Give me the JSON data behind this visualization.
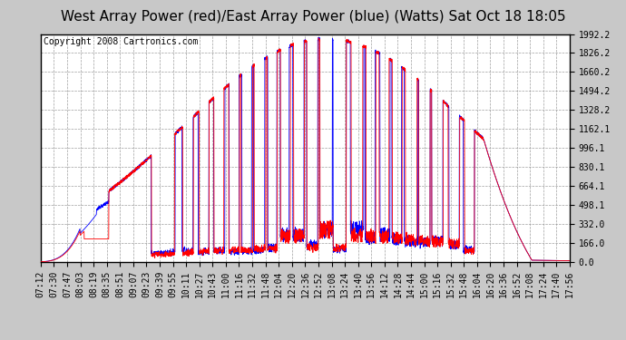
{
  "title": "West Array Power (red)/East Array Power (blue) (Watts) Sat Oct 18 18:05",
  "copyright": "Copyright 2008 Cartronics.com",
  "yticks": [
    0.0,
    166.0,
    332.0,
    498.1,
    664.1,
    830.1,
    996.1,
    1162.1,
    1328.2,
    1494.2,
    1660.2,
    1826.2,
    1992.2
  ],
  "ylim": [
    0.0,
    1992.2
  ],
  "background_color": "#c8c8c8",
  "plot_background": "#ffffff",
  "grid_color": "#888888",
  "red_color": "#ff0000",
  "blue_color": "#0000ff",
  "title_fontsize": 11,
  "copyright_fontsize": 7,
  "tick_fontsize": 7,
  "x_tick_labels": [
    "07:12",
    "07:30",
    "07:47",
    "08:03",
    "08:19",
    "08:35",
    "08:51",
    "09:07",
    "09:23",
    "09:39",
    "09:55",
    "10:11",
    "10:27",
    "10:43",
    "11:00",
    "11:16",
    "11:32",
    "11:48",
    "12:04",
    "12:20",
    "12:36",
    "12:52",
    "13:08",
    "13:24",
    "13:40",
    "13:56",
    "14:12",
    "14:28",
    "14:44",
    "15:00",
    "15:16",
    "15:32",
    "15:48",
    "16:04",
    "16:20",
    "16:36",
    "16:52",
    "17:08",
    "17:24",
    "17:40",
    "17:56"
  ]
}
